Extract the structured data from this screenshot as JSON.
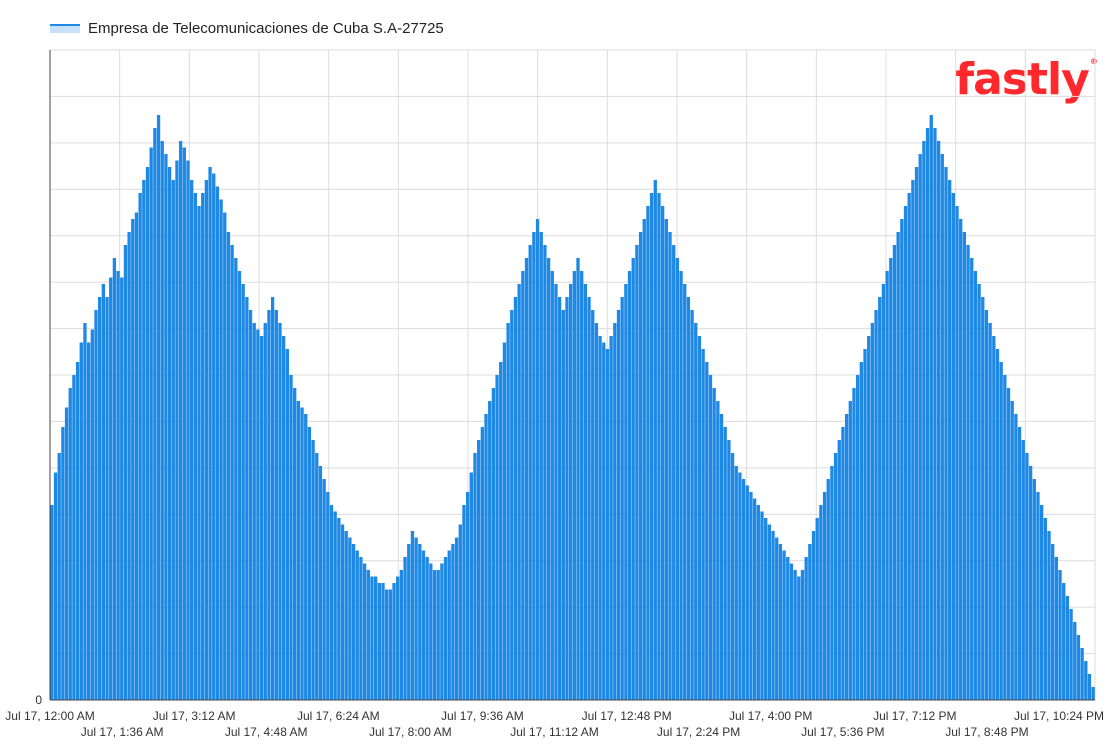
{
  "brand": {
    "logo_text": "fastly",
    "reg_mark": "®",
    "color": "#ff282d"
  },
  "legend": {
    "label": "Empresa de Telecomunicaciones de Cuba S.A-27725",
    "color": "#1e88e5"
  },
  "chart_data": {
    "type": "bar",
    "title": "",
    "xlabel": "",
    "ylabel": "",
    "series": [
      {
        "name": "Empresa de Telecomunicaciones de Cuba S.A-27725",
        "color": "#1e88e5",
        "values": [
          0.3,
          0.35,
          0.38,
          0.42,
          0.45,
          0.48,
          0.5,
          0.52,
          0.55,
          0.58,
          0.55,
          0.57,
          0.6,
          0.62,
          0.64,
          0.62,
          0.65,
          0.68,
          0.66,
          0.65,
          0.7,
          0.72,
          0.74,
          0.75,
          0.78,
          0.8,
          0.82,
          0.85,
          0.88,
          0.9,
          0.86,
          0.84,
          0.82,
          0.8,
          0.83,
          0.86,
          0.85,
          0.83,
          0.8,
          0.78,
          0.76,
          0.78,
          0.8,
          0.82,
          0.81,
          0.79,
          0.77,
          0.75,
          0.72,
          0.7,
          0.68,
          0.66,
          0.64,
          0.62,
          0.6,
          0.58,
          0.57,
          0.56,
          0.58,
          0.6,
          0.62,
          0.6,
          0.58,
          0.56,
          0.54,
          0.5,
          0.48,
          0.46,
          0.45,
          0.44,
          0.42,
          0.4,
          0.38,
          0.36,
          0.34,
          0.32,
          0.3,
          0.29,
          0.28,
          0.27,
          0.26,
          0.25,
          0.24,
          0.23,
          0.22,
          0.21,
          0.2,
          0.19,
          0.19,
          0.18,
          0.18,
          0.17,
          0.17,
          0.18,
          0.19,
          0.2,
          0.22,
          0.24,
          0.26,
          0.25,
          0.24,
          0.23,
          0.22,
          0.21,
          0.2,
          0.2,
          0.21,
          0.22,
          0.23,
          0.24,
          0.25,
          0.27,
          0.3,
          0.32,
          0.35,
          0.38,
          0.4,
          0.42,
          0.44,
          0.46,
          0.48,
          0.5,
          0.52,
          0.55,
          0.58,
          0.6,
          0.62,
          0.64,
          0.66,
          0.68,
          0.7,
          0.72,
          0.74,
          0.72,
          0.7,
          0.68,
          0.66,
          0.64,
          0.62,
          0.6,
          0.62,
          0.64,
          0.66,
          0.68,
          0.66,
          0.64,
          0.62,
          0.6,
          0.58,
          0.56,
          0.55,
          0.54,
          0.56,
          0.58,
          0.6,
          0.62,
          0.64,
          0.66,
          0.68,
          0.7,
          0.72,
          0.74,
          0.76,
          0.78,
          0.8,
          0.78,
          0.76,
          0.74,
          0.72,
          0.7,
          0.68,
          0.66,
          0.64,
          0.62,
          0.6,
          0.58,
          0.56,
          0.54,
          0.52,
          0.5,
          0.48,
          0.46,
          0.44,
          0.42,
          0.4,
          0.38,
          0.36,
          0.35,
          0.34,
          0.33,
          0.32,
          0.31,
          0.3,
          0.29,
          0.28,
          0.27,
          0.26,
          0.25,
          0.24,
          0.23,
          0.22,
          0.21,
          0.2,
          0.19,
          0.2,
          0.22,
          0.24,
          0.26,
          0.28,
          0.3,
          0.32,
          0.34,
          0.36,
          0.38,
          0.4,
          0.42,
          0.44,
          0.46,
          0.48,
          0.5,
          0.52,
          0.54,
          0.56,
          0.58,
          0.6,
          0.62,
          0.64,
          0.66,
          0.68,
          0.7,
          0.72,
          0.74,
          0.76,
          0.78,
          0.8,
          0.82,
          0.84,
          0.86,
          0.88,
          0.9,
          0.88,
          0.86,
          0.84,
          0.82,
          0.8,
          0.78,
          0.76,
          0.74,
          0.72,
          0.7,
          0.68,
          0.66,
          0.64,
          0.62,
          0.6,
          0.58,
          0.56,
          0.54,
          0.52,
          0.5,
          0.48,
          0.46,
          0.44,
          0.42,
          0.4,
          0.38,
          0.36,
          0.34,
          0.32,
          0.3,
          0.28,
          0.26,
          0.24,
          0.22,
          0.2,
          0.18,
          0.16,
          0.14,
          0.12,
          0.1,
          0.08,
          0.06,
          0.04,
          0.02
        ]
      }
    ],
    "y_axis": {
      "ticks": [
        "0"
      ]
    },
    "x_axis": {
      "ticks_row1": [
        "Jul 17, 12:00 AM",
        "Jul 17, 3:12 AM",
        "Jul 17, 6:24 AM",
        "Jul 17, 9:36 AM",
        "Jul 17, 12:48 PM",
        "Jul 17, 4:00 PM",
        "Jul 17, 7:12 PM",
        "Jul 17, 10:24 PM"
      ],
      "ticks_row2": [
        "Jul 17, 1:36 AM",
        "Jul 17, 4:48 AM",
        "Jul 17, 8:00 AM",
        "Jul 17, 11:12 AM",
        "Jul 17, 2:24 PM",
        "Jul 17, 5:36 PM",
        "Jul 17, 8:48 PM"
      ]
    },
    "grid": true,
    "legend_position": "top-left"
  }
}
